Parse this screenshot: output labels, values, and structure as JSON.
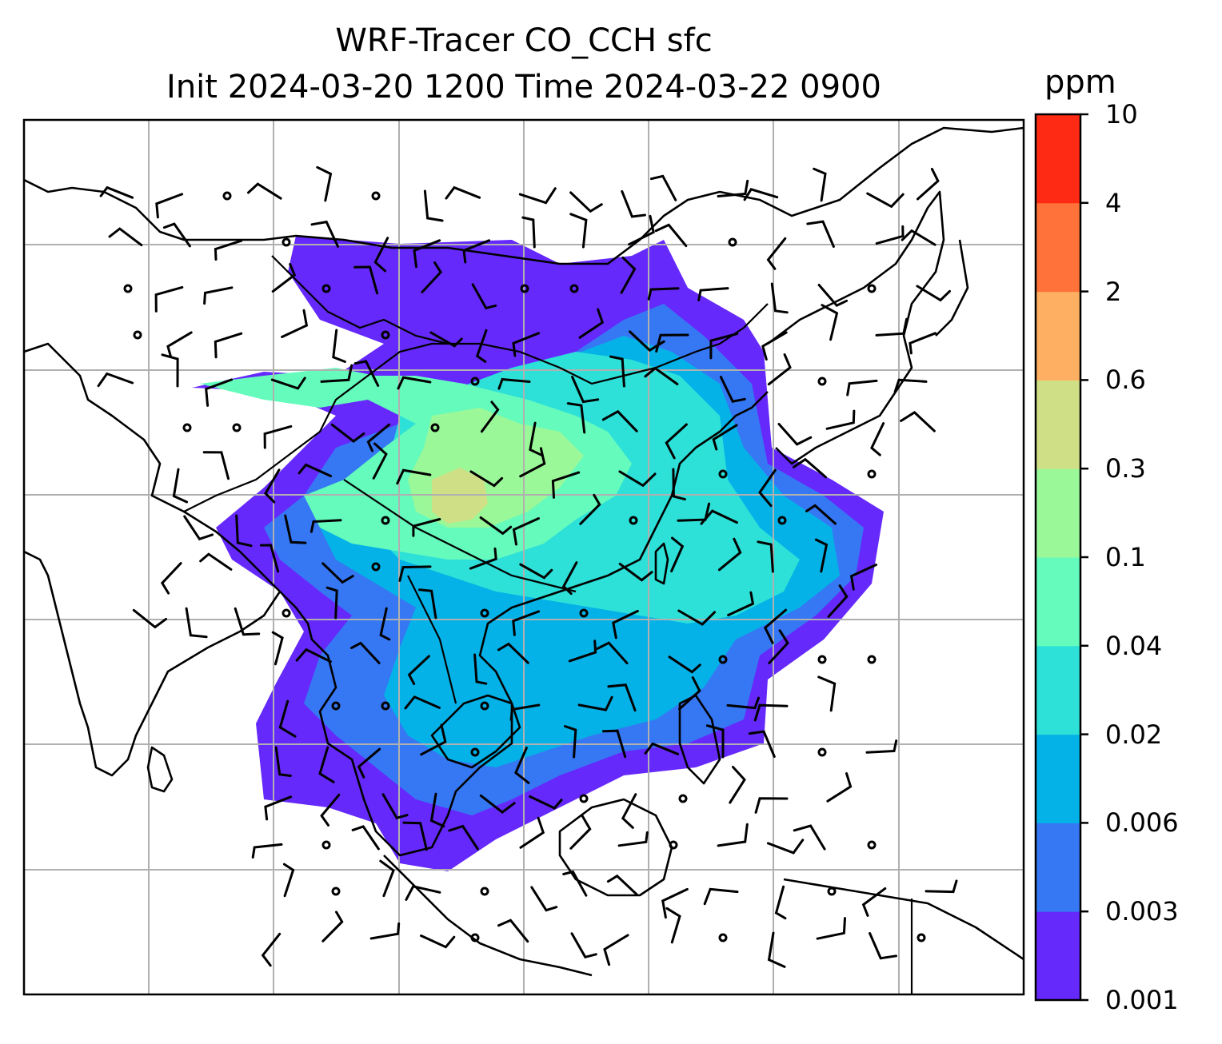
{
  "title": {
    "line1": "WRF-Tracer CO_CCH sfc",
    "line2": "Init 2024-03-20 1200 Time 2024-03-22 0900"
  },
  "colorbar": {
    "unit": "ppm",
    "ticks": [
      "10",
      "4",
      "2",
      "0.6",
      "0.3",
      "0.1",
      "0.04",
      "0.02",
      "0.006",
      "0.003",
      "0.001"
    ],
    "colors": [
      "#6629fb",
      "#3677f4",
      "#04b2e8",
      "#2de0d8",
      "#64fbbc",
      "#9bf898",
      "#cfdf85",
      "#ffaf61",
      "#ff7239",
      "#ff2a14"
    ]
  },
  "map": {
    "background": "#ffffff",
    "gridlines": true,
    "coastline_color": "#000000",
    "layers": [
      "co-concentration-fill",
      "coastlines",
      "country-borders",
      "wind-barbs",
      "calm-wind-circles"
    ]
  }
}
